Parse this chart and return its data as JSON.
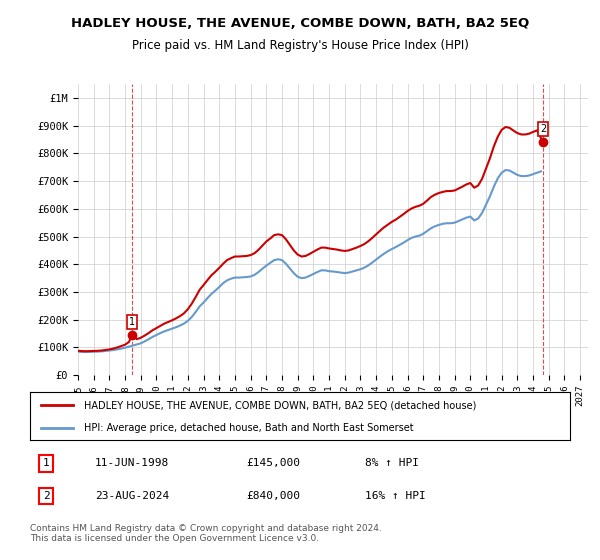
{
  "title": "HADLEY HOUSE, THE AVENUE, COMBE DOWN, BATH, BA2 5EQ",
  "subtitle": "Price paid vs. HM Land Registry's House Price Index (HPI)",
  "ylabel_ticks": [
    "£0",
    "£100K",
    "£200K",
    "£300K",
    "£400K",
    "£500K",
    "£600K",
    "£700K",
    "£800K",
    "£900K",
    "£1M"
  ],
  "ytick_values": [
    0,
    100000,
    200000,
    300000,
    400000,
    500000,
    600000,
    700000,
    800000,
    900000,
    1000000
  ],
  "ylim": [
    0,
    1050000
  ],
  "xlim_start": 1995.0,
  "xlim_end": 2027.5,
  "background_color": "#ffffff",
  "grid_color": "#cccccc",
  "legend_line1": "HADLEY HOUSE, THE AVENUE, COMBE DOWN, BATH, BA2 5EQ (detached house)",
  "legend_line2": "HPI: Average price, detached house, Bath and North East Somerset",
  "sale1_label": "1",
  "sale1_date": "11-JUN-1998",
  "sale1_price": "£145,000",
  "sale1_hpi": "8% ↑ HPI",
  "sale1_x": 1998.44,
  "sale1_y": 145000,
  "sale2_label": "2",
  "sale2_date": "23-AUG-2024",
  "sale2_price": "£840,000",
  "sale2_hpi": "16% ↑ HPI",
  "sale2_x": 2024.64,
  "sale2_y": 840000,
  "price_line_color": "#cc0000",
  "hpi_line_color": "#6699cc",
  "footnote": "Contains HM Land Registry data © Crown copyright and database right 2024.\nThis data is licensed under the Open Government Licence v3.0.",
  "hpi_data_x": [
    1995.0,
    1995.25,
    1995.5,
    1995.75,
    1996.0,
    1996.25,
    1996.5,
    1996.75,
    1997.0,
    1997.25,
    1997.5,
    1997.75,
    1998.0,
    1998.25,
    1998.5,
    1998.75,
    1999.0,
    1999.25,
    1999.5,
    1999.75,
    2000.0,
    2000.25,
    2000.5,
    2000.75,
    2001.0,
    2001.25,
    2001.5,
    2001.75,
    2002.0,
    2002.25,
    2002.5,
    2002.75,
    2003.0,
    2003.25,
    2003.5,
    2003.75,
    2004.0,
    2004.25,
    2004.5,
    2004.75,
    2005.0,
    2005.25,
    2005.5,
    2005.75,
    2006.0,
    2006.25,
    2006.5,
    2006.75,
    2007.0,
    2007.25,
    2007.5,
    2007.75,
    2008.0,
    2008.25,
    2008.5,
    2008.75,
    2009.0,
    2009.25,
    2009.5,
    2009.75,
    2010.0,
    2010.25,
    2010.5,
    2010.75,
    2011.0,
    2011.25,
    2011.5,
    2011.75,
    2012.0,
    2012.25,
    2012.5,
    2012.75,
    2013.0,
    2013.25,
    2013.5,
    2013.75,
    2014.0,
    2014.25,
    2014.5,
    2014.75,
    2015.0,
    2015.25,
    2015.5,
    2015.75,
    2016.0,
    2016.25,
    2016.5,
    2016.75,
    2017.0,
    2017.25,
    2017.5,
    2017.75,
    2018.0,
    2018.25,
    2018.5,
    2018.75,
    2019.0,
    2019.25,
    2019.5,
    2019.75,
    2020.0,
    2020.25,
    2020.5,
    2020.75,
    2021.0,
    2021.25,
    2021.5,
    2021.75,
    2022.0,
    2022.25,
    2022.5,
    2022.75,
    2023.0,
    2023.25,
    2023.5,
    2023.75,
    2024.0,
    2024.25,
    2024.5
  ],
  "hpi_data_y": [
    85000,
    84000,
    83500,
    84000,
    84500,
    85000,
    86000,
    87500,
    89000,
    91000,
    93000,
    96000,
    99000,
    103000,
    107000,
    111000,
    115000,
    122000,
    130000,
    138000,
    145000,
    152000,
    158000,
    163000,
    168000,
    173000,
    179000,
    186000,
    196000,
    210000,
    228000,
    248000,
    262000,
    278000,
    293000,
    305000,
    318000,
    332000,
    342000,
    348000,
    352000,
    352000,
    353000,
    354000,
    356000,
    362000,
    372000,
    384000,
    395000,
    405000,
    415000,
    418000,
    415000,
    402000,
    385000,
    368000,
    355000,
    350000,
    352000,
    358000,
    365000,
    372000,
    378000,
    378000,
    375000,
    374000,
    372000,
    370000,
    368000,
    370000,
    374000,
    378000,
    382000,
    388000,
    396000,
    406000,
    417000,
    428000,
    438000,
    447000,
    455000,
    462000,
    470000,
    478000,
    487000,
    495000,
    500000,
    503000,
    510000,
    520000,
    530000,
    537000,
    542000,
    546000,
    548000,
    548000,
    550000,
    556000,
    562000,
    568000,
    572000,
    558000,
    565000,
    585000,
    615000,
    645000,
    680000,
    710000,
    730000,
    740000,
    738000,
    730000,
    722000,
    718000,
    718000,
    720000,
    725000,
    730000,
    735000
  ],
  "price_data_x": [
    1995.0,
    1995.25,
    1995.5,
    1995.75,
    1996.0,
    1996.25,
    1996.5,
    1996.75,
    1997.0,
    1997.25,
    1997.5,
    1997.75,
    1998.0,
    1998.25,
    1998.44,
    1998.75,
    1999.0,
    1999.25,
    1999.5,
    1999.75,
    2000.0,
    2000.25,
    2000.5,
    2000.75,
    2001.0,
    2001.25,
    2001.5,
    2001.75,
    2002.0,
    2002.25,
    2002.5,
    2002.75,
    2003.0,
    2003.25,
    2003.5,
    2003.75,
    2004.0,
    2004.25,
    2004.5,
    2004.75,
    2005.0,
    2005.25,
    2005.5,
    2005.75,
    2006.0,
    2006.25,
    2006.5,
    2006.75,
    2007.0,
    2007.25,
    2007.5,
    2007.75,
    2008.0,
    2008.25,
    2008.5,
    2008.75,
    2009.0,
    2009.25,
    2009.5,
    2009.75,
    2010.0,
    2010.25,
    2010.5,
    2010.75,
    2011.0,
    2011.25,
    2011.5,
    2011.75,
    2012.0,
    2012.25,
    2012.5,
    2012.75,
    2013.0,
    2013.25,
    2013.5,
    2013.75,
    2014.0,
    2014.25,
    2014.5,
    2014.75,
    2015.0,
    2015.25,
    2015.5,
    2015.75,
    2016.0,
    2016.25,
    2016.5,
    2016.75,
    2017.0,
    2017.25,
    2017.5,
    2017.75,
    2018.0,
    2018.25,
    2018.5,
    2018.75,
    2019.0,
    2019.25,
    2019.5,
    2019.75,
    2020.0,
    2020.25,
    2020.5,
    2020.75,
    2021.0,
    2021.25,
    2021.5,
    2021.75,
    2022.0,
    2022.25,
    2022.5,
    2022.75,
    2023.0,
    2023.25,
    2023.5,
    2023.75,
    2024.0,
    2024.25,
    2024.64
  ],
  "price_data_y": [
    88000,
    87000,
    86500,
    87000,
    87500,
    88000,
    89000,
    91000,
    93000,
    96000,
    100000,
    105000,
    110000,
    120000,
    145000,
    130000,
    135000,
    143000,
    152000,
    162000,
    170000,
    178000,
    186000,
    192000,
    198000,
    205000,
    213000,
    223000,
    238000,
    258000,
    282000,
    308000,
    325000,
    343000,
    360000,
    373000,
    387000,
    402000,
    415000,
    422000,
    428000,
    428000,
    429000,
    430000,
    433000,
    440000,
    452000,
    467000,
    482000,
    493000,
    505000,
    508000,
    505000,
    490000,
    470000,
    450000,
    435000,
    428000,
    430000,
    437000,
    445000,
    453000,
    460000,
    460000,
    457000,
    455000,
    453000,
    450000,
    448000,
    450000,
    455000,
    460000,
    466000,
    473000,
    483000,
    495000,
    508000,
    521000,
    533000,
    543000,
    553000,
    561000,
    571000,
    581000,
    592000,
    601000,
    607000,
    611000,
    618000,
    630000,
    643000,
    651000,
    657000,
    661000,
    664000,
    664000,
    666000,
    673000,
    680000,
    688000,
    693000,
    676000,
    684000,
    708000,
    745000,
    782000,
    825000,
    860000,
    885000,
    895000,
    892000,
    882000,
    873000,
    868000,
    868000,
    871000,
    877000,
    883000,
    840000
  ]
}
